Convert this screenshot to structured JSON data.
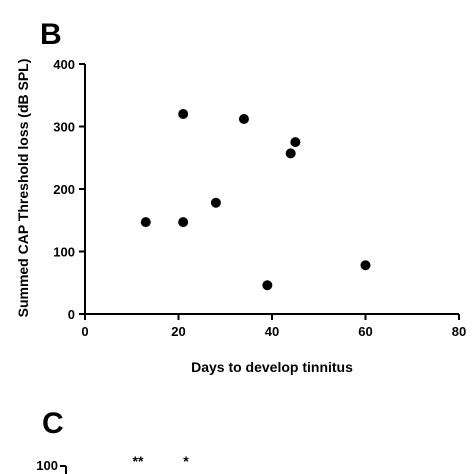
{
  "panel_b": {
    "letter": "B"
  },
  "panel_c": {
    "letter": "C",
    "y_top_tick": "100",
    "sig_marks": [
      "**",
      "*"
    ]
  },
  "chart_data": {
    "type": "scatter",
    "xlabel": "Days to develop tinnitus",
    "ylabel": "Summed CAP Threshold loss (dB SPL)",
    "xlim": [
      0,
      80
    ],
    "ylim": [
      0,
      400
    ],
    "xticks": [
      0,
      20,
      40,
      60,
      80
    ],
    "yticks": [
      0,
      100,
      200,
      300,
      400
    ],
    "grid": false,
    "points": [
      {
        "x": 13,
        "y": 147
      },
      {
        "x": 21,
        "y": 147
      },
      {
        "x": 21,
        "y": 320
      },
      {
        "x": 28,
        "y": 178
      },
      {
        "x": 34,
        "y": 312
      },
      {
        "x": 39,
        "y": 46
      },
      {
        "x": 44,
        "y": 257
      },
      {
        "x": 45,
        "y": 275
      },
      {
        "x": 60,
        "y": 78
      }
    ]
  }
}
